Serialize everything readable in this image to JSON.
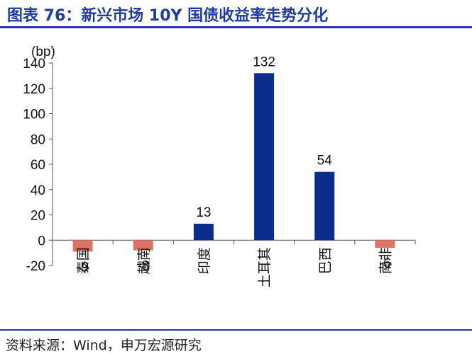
{
  "header": {
    "title": "图表 76：新兴市场 10Y 国债收益率走势分化"
  },
  "footer": {
    "source": "资料来源：Wind，申万宏源研究"
  },
  "chart_data": {
    "type": "bar",
    "title": "",
    "ylabel": "(bp)",
    "xlabel": "",
    "ylim": [
      -20,
      140
    ],
    "yticks": [
      -20,
      0,
      20,
      40,
      60,
      80,
      100,
      120,
      140
    ],
    "categories": [
      "泰国",
      "越南",
      "印度",
      "土耳其",
      "巴西",
      "南非"
    ],
    "values": [
      -9,
      -8,
      13,
      132,
      54,
      -6
    ],
    "data_labels": [
      "-9",
      "-8",
      "13",
      "132",
      "54",
      "-6"
    ],
    "colors": {
      "positive": "#0b2d8c",
      "negative": "#e07265",
      "axis": "#555555"
    },
    "grid": false,
    "legend": "none"
  }
}
